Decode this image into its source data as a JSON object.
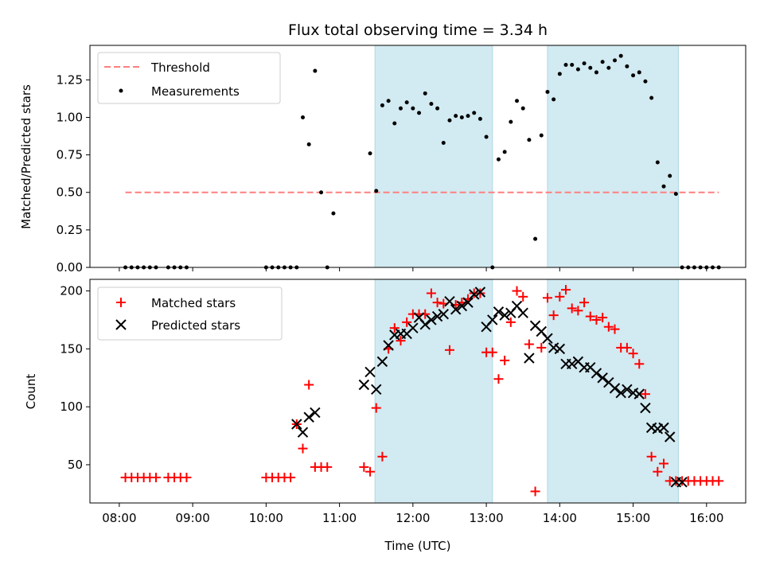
{
  "figure": {
    "title": "Flux total observing time = 3.34 h",
    "shade_color": "#add8e6",
    "x_ticks": [
      "08:00",
      "09:00",
      "10:00",
      "11:00",
      "12:00",
      "13:00",
      "14:00",
      "15:00",
      "16:00"
    ],
    "xlabel": "Time (UTC)"
  },
  "chart_data": [
    {
      "type": "scatter",
      "title": "Flux total observing time = 3.34 h",
      "xlabel": "",
      "ylabel": "Matched/Predicted stars",
      "xlim": [
        "07:36",
        "16:32"
      ],
      "ylim": [
        0,
        1.48
      ],
      "y_ticks": [
        0.0,
        0.25,
        0.5,
        0.75,
        1.0,
        1.25
      ],
      "shaded_intervals": [
        [
          "11:29",
          "13:05"
        ],
        [
          "13:50",
          "15:37"
        ]
      ],
      "legend_position": "top-left",
      "series": [
        {
          "name": "Threshold",
          "kind": "dashed-line",
          "color": "#ff7f7f",
          "x": [
            "08:05",
            "16:10"
          ],
          "y": [
            0.5,
            0.5
          ]
        },
        {
          "name": "Measurements",
          "kind": "points",
          "color": "#000000",
          "x": [
            "08:05",
            "08:10",
            "08:15",
            "08:20",
            "08:25",
            "08:30",
            "08:40",
            "08:45",
            "08:50",
            "08:55",
            "10:00",
            "10:05",
            "10:10",
            "10:15",
            "10:20",
            "10:25",
            "10:30",
            "10:35",
            "10:40",
            "10:45",
            "10:50",
            "10:55",
            "11:25",
            "11:30",
            "11:35",
            "11:40",
            "11:45",
            "11:50",
            "11:55",
            "12:00",
            "12:05",
            "12:10",
            "12:15",
            "12:20",
            "12:25",
            "12:30",
            "12:35",
            "12:40",
            "12:45",
            "12:50",
            "12:55",
            "13:00",
            "13:05",
            "13:10",
            "13:15",
            "13:20",
            "13:25",
            "13:30",
            "13:35",
            "13:40",
            "13:45",
            "13:50",
            "13:55",
            "14:00",
            "14:05",
            "14:10",
            "14:15",
            "14:20",
            "14:25",
            "14:30",
            "14:35",
            "14:40",
            "14:45",
            "14:50",
            "14:55",
            "15:00",
            "15:05",
            "15:10",
            "15:15",
            "15:20",
            "15:25",
            "15:30",
            "15:35",
            "15:40",
            "15:45",
            "15:50",
            "15:55",
            "16:00",
            "16:05",
            "16:10"
          ],
          "y": [
            0,
            0,
            0,
            0,
            0,
            0,
            0,
            0,
            0,
            0,
            0,
            0,
            0,
            0,
            0,
            0,
            1.0,
            0.82,
            1.31,
            0.5,
            0,
            0.36,
            0.76,
            0.51,
            1.08,
            1.11,
            0.96,
            1.06,
            1.1,
            1.06,
            1.03,
            1.16,
            1.09,
            1.06,
            0.83,
            0.98,
            1.01,
            1.0,
            1.01,
            1.03,
            0.99,
            0.87,
            0,
            0.72,
            0.77,
            0.97,
            1.11,
            1.06,
            0.85,
            0.19,
            0.88,
            1.17,
            1.12,
            1.29,
            1.35,
            1.35,
            1.32,
            1.36,
            1.33,
            1.3,
            1.37,
            1.33,
            1.38,
            1.41,
            1.34,
            1.28,
            1.3,
            1.24,
            1.13,
            0.7,
            0.54,
            0.61,
            0.49,
            0,
            0,
            0,
            0,
            0,
            0,
            0
          ]
        }
      ]
    },
    {
      "type": "scatter",
      "xlabel": "Time (UTC)",
      "ylabel": "Count",
      "xlim": [
        "07:36",
        "16:32"
      ],
      "ylim": [
        17,
        210
      ],
      "y_ticks": [
        50,
        100,
        150,
        200
      ],
      "shaded_intervals": [
        [
          "11:29",
          "13:05"
        ],
        [
          "13:50",
          "15:37"
        ]
      ],
      "legend_position": "top-left",
      "series": [
        {
          "name": "Matched stars",
          "kind": "plus",
          "color": "#ff0000",
          "x": [
            "08:05",
            "08:10",
            "08:15",
            "08:20",
            "08:25",
            "08:30",
            "08:40",
            "08:45",
            "08:50",
            "08:55",
            "10:00",
            "10:05",
            "10:10",
            "10:15",
            "10:20",
            "10:25",
            "10:30",
            "10:35",
            "10:40",
            "10:45",
            "10:50",
            "11:20",
            "11:25",
            "11:30",
            "11:35",
            "11:40",
            "11:45",
            "11:50",
            "11:55",
            "12:00",
            "12:05",
            "12:10",
            "12:15",
            "12:20",
            "12:25",
            "12:30",
            "12:35",
            "12:40",
            "12:45",
            "12:50",
            "12:55",
            "13:00",
            "13:05",
            "13:10",
            "13:15",
            "13:20",
            "13:25",
            "13:30",
            "13:35",
            "13:40",
            "13:45",
            "13:50",
            "13:55",
            "14:00",
            "14:05",
            "14:10",
            "14:15",
            "14:20",
            "14:25",
            "14:30",
            "14:35",
            "14:40",
            "14:45",
            "14:50",
            "14:55",
            "15:00",
            "15:05",
            "15:10",
            "15:15",
            "15:20",
            "15:25",
            "15:30",
            "15:35",
            "15:40",
            "15:45",
            "15:50",
            "15:55",
            "16:00",
            "16:05",
            "16:10"
          ],
          "y": [
            39,
            39,
            39,
            39,
            39,
            39,
            39,
            39,
            39,
            39,
            39,
            39,
            39,
            39,
            39,
            85,
            64,
            119,
            48,
            48,
            48,
            48,
            44,
            99,
            57,
            150,
            168,
            157,
            173,
            180,
            180,
            180,
            198,
            190,
            189,
            149,
            188,
            190,
            193,
            198,
            198,
            147,
            147,
            124,
            140,
            173,
            200,
            195,
            154,
            27,
            151,
            194,
            179,
            195,
            201,
            185,
            183,
            190,
            178,
            175,
            177,
            169,
            167,
            151,
            151,
            146,
            137,
            111,
            57,
            44,
            51,
            36,
            36,
            36,
            36,
            36,
            36,
            36,
            36,
            36
          ]
        },
        {
          "name": "Predicted stars",
          "kind": "x",
          "color": "#000000",
          "x": [
            "10:25",
            "10:30",
            "10:35",
            "10:40",
            "11:20",
            "11:25",
            "11:30",
            "11:35",
            "11:40",
            "11:45",
            "11:50",
            "11:55",
            "12:00",
            "12:05",
            "12:10",
            "12:15",
            "12:20",
            "12:25",
            "12:30",
            "12:35",
            "12:40",
            "12:45",
            "12:50",
            "12:55",
            "13:00",
            "13:05",
            "13:10",
            "13:15",
            "13:20",
            "13:25",
            "13:30",
            "13:35",
            "13:40",
            "13:45",
            "13:50",
            "13:55",
            "14:00",
            "14:05",
            "14:10",
            "14:15",
            "14:20",
            "14:25",
            "14:30",
            "14:35",
            "14:40",
            "14:45",
            "14:50",
            "14:55",
            "15:00",
            "15:05",
            "15:10",
            "15:15",
            "15:20",
            "15:25",
            "15:30",
            "15:35",
            "15:40"
          ],
          "y": [
            85,
            78,
            91,
            95,
            119,
            130,
            115,
            139,
            153,
            162,
            163,
            163,
            168,
            177,
            171,
            175,
            178,
            180,
            191,
            184,
            187,
            190,
            197,
            199,
            169,
            175,
            182,
            179,
            181,
            187,
            181,
            142,
            170,
            165,
            159,
            151,
            150,
            137,
            137,
            139,
            134,
            134,
            129,
            125,
            121,
            116,
            112,
            115,
            112,
            111,
            99,
            82,
            81,
            82,
            74,
            35,
            35
          ]
        }
      ]
    }
  ]
}
